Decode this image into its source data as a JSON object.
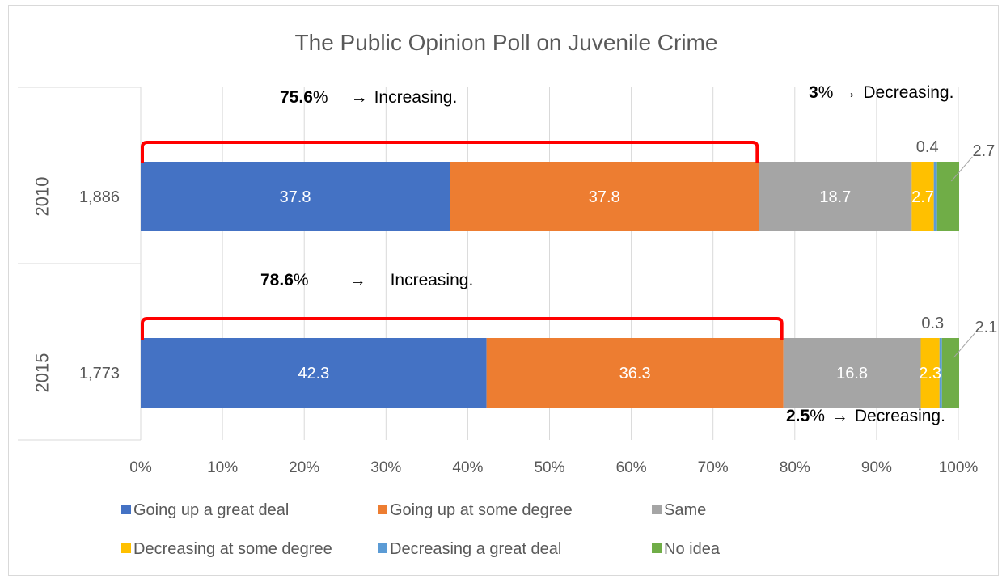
{
  "chart_data": {
    "type": "bar",
    "stacked": "100%",
    "orientation": "horizontal",
    "title": "The Public Opinion Poll on Juvenile Crime",
    "xlim": [
      0,
      100
    ],
    "x_ticks": [
      "0%",
      "10%",
      "20%",
      "30%",
      "40%",
      "50%",
      "60%",
      "70%",
      "80%",
      "90%",
      "100%"
    ],
    "grid": true,
    "legend_position": "bottom",
    "categories": [
      {
        "year": "2010",
        "n": "1,886"
      },
      {
        "year": "2015",
        "n": "1,773"
      }
    ],
    "series": [
      {
        "name": "Going up a great deal",
        "color": "#4472c4",
        "values": [
          37.8,
          42.3
        ],
        "labels": [
          "37.8",
          "42.3"
        ]
      },
      {
        "name": "Going up at some degree",
        "color": "#ed7d31",
        "values": [
          37.8,
          36.3
        ],
        "labels": [
          "37.8",
          "36.3"
        ]
      },
      {
        "name": "Same",
        "color": "#a5a5a5",
        "values": [
          18.7,
          16.8
        ],
        "labels": [
          "18.7",
          "16.8"
        ]
      },
      {
        "name": "Decreasing at some degree",
        "color": "#ffc000",
        "values": [
          2.7,
          2.3
        ],
        "labels": [
          "2.7",
          "2.3"
        ]
      },
      {
        "name": "Decreasing a great deal",
        "color": "#5b9bd5",
        "values": [
          0.4,
          0.3
        ],
        "labels": [
          "0.4",
          "0.3"
        ]
      },
      {
        "name": "No idea",
        "color": "#70ad47",
        "values": [
          2.7,
          2.1
        ],
        "labels": [
          "2.7",
          "2.1"
        ]
      }
    ],
    "annotations": {
      "increasing_2010": {
        "value": "75.6",
        "pct": "%",
        "arrow": "→",
        "text": "Increasing."
      },
      "increasing_2015": {
        "value": "78.6",
        "pct": "%",
        "arrow": "→",
        "text": "Increasing."
      },
      "decreasing_2010": {
        "value": "3",
        "pct": "%",
        "arrow": "→",
        "text": "Decreasing."
      },
      "decreasing_2015": {
        "value": "2.5",
        "pct": "%",
        "arrow": "→",
        "text": "Decreasing."
      }
    },
    "bracket_color": "#ff0000"
  }
}
